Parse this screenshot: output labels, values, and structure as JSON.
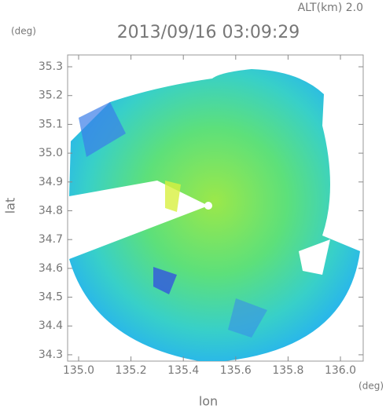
{
  "chart_data": {
    "type": "radar-map",
    "title": "2013/09/16 03:09:29",
    "altitude_label": "ALT(km) 2.0",
    "y_unit": "(deg)",
    "x_unit": "(deg)",
    "ylabel": "lat",
    "xlabel": "lon",
    "xlim": [
      134.958,
      136.087
    ],
    "xticks": [
      {
        "value": 135.0,
        "label": "135.0"
      },
      135.2,
      135.4,
      135.6,
      135.8,
      {
        "value": 136.0,
        "label": "136.0"
      }
    ],
    "ylim": [
      34.278,
      35.341
    ],
    "yticks": [
      34.3,
      34.4,
      34.5,
      34.6,
      34.7,
      34.8,
      34.9,
      {
        "value": 35.0,
        "label": "35.0"
      },
      35.1,
      35.2,
      35.3
    ]
  }
}
